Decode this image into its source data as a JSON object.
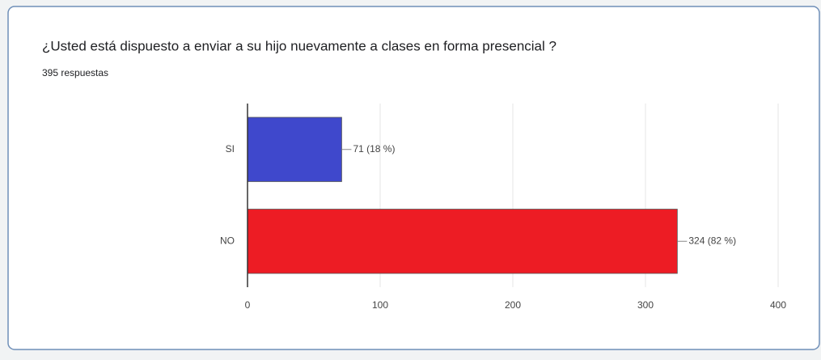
{
  "chart_data": {
    "type": "bar",
    "orientation": "horizontal",
    "title": "¿Usted está dispuesto a enviar a su hijo nuevamente a clases en forma presencial ?",
    "subtitle": "395 respuestas",
    "categories": [
      "SI",
      "NO"
    ],
    "values": [
      71,
      324
    ],
    "value_labels": [
      "71 (18 %)",
      "324 (82 %)"
    ],
    "colors": [
      "#3f48cc",
      "#ed1c24"
    ],
    "xlim": [
      0,
      400
    ],
    "xticks": [
      0,
      100,
      200,
      300,
      400
    ],
    "grid": true
  }
}
